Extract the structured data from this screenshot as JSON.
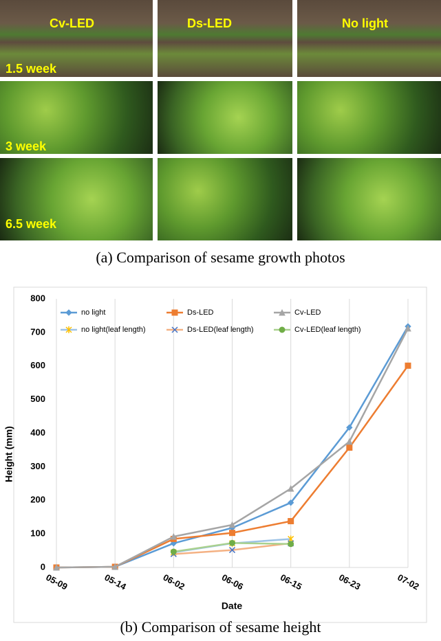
{
  "photos": {
    "columns": [
      "Cv-LED",
      "Ds-LED",
      "No light"
    ],
    "rows": [
      "1.5 week",
      "3 week",
      "6.5 week"
    ]
  },
  "captions": [
    "(a)  Comparison  of  sesame  growth  photos",
    "(b)  Comparison  of  sesame  height"
  ],
  "chart_data": {
    "type": "line",
    "x_label": "Date",
    "y_label": "Height (mm)",
    "categories": [
      "05-09",
      "05-14",
      "06-02",
      "06-06",
      "06-15",
      "06-23",
      "07-02"
    ],
    "ylim": [
      0,
      800
    ],
    "yticks": [
      0,
      100,
      200,
      300,
      400,
      500,
      600,
      700,
      800
    ],
    "grid": "x",
    "legend": "top",
    "series": [
      {
        "name": "no light",
        "color": "#5b9bd5",
        "marker": "diamond",
        "marker_color": "#5b9bd5",
        "values": [
          0,
          2,
          72,
          118,
          193,
          417,
          718
        ]
      },
      {
        "name": "Ds-LED",
        "color": "#ed7d31",
        "marker": "square",
        "marker_color": "#ed7d31",
        "values": [
          0,
          2,
          85,
          103,
          138,
          357,
          601
        ]
      },
      {
        "name": "Cv-LED",
        "color": "#a5a5a5",
        "marker": "triangle",
        "marker_color": "#a5a5a5",
        "values": [
          0,
          2,
          92,
          127,
          235,
          375,
          712
        ]
      },
      {
        "name": "no light(leaf length)",
        "color": "#9dc3e6",
        "marker": "star",
        "marker_color": "#ffc000",
        "values": [
          null,
          null,
          45,
          72,
          85,
          null,
          null
        ]
      },
      {
        "name": "Ds-LED(leaf length)",
        "color": "#f4b183",
        "marker": "x",
        "marker_color": "#4472c4",
        "values": [
          null,
          null,
          40,
          52,
          72,
          null,
          null
        ]
      },
      {
        "name": "Cv-LED(leaf length)",
        "color": "#a9d18e",
        "marker": "circle",
        "marker_color": "#70ad47",
        "values": [
          null,
          null,
          47,
          73,
          70,
          null,
          null
        ]
      }
    ]
  }
}
